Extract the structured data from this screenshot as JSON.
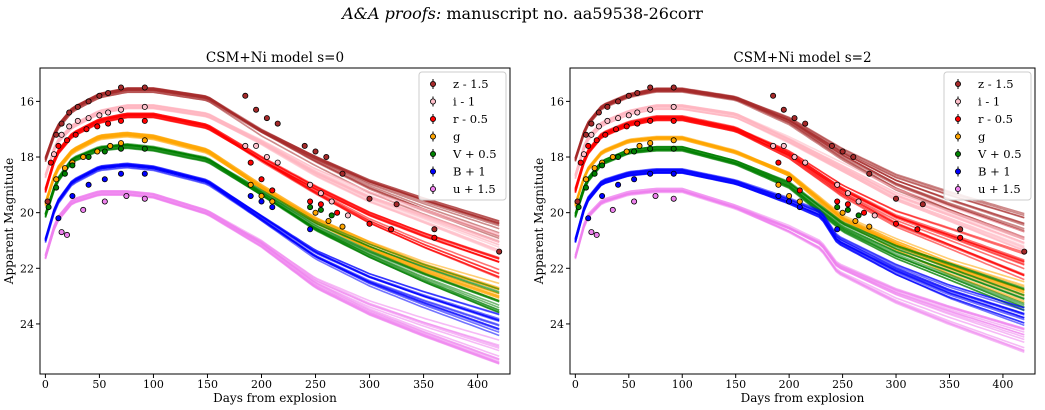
{
  "header": {
    "journal": "A&A proofs:",
    "manuscript": "manuscript no. aa59538-26corr"
  },
  "chart_data": [
    {
      "type": "line",
      "title": "CSM+Ni model s=0",
      "xlabel": "Days from explosion",
      "ylabel": "Apparent Magnitude",
      "xlim": [
        -5,
        430
      ],
      "ylim": [
        25.8,
        14.8
      ],
      "y_inverted": true,
      "xticks": [
        0,
        50,
        100,
        150,
        200,
        250,
        300,
        350,
        400
      ],
      "yticks": [
        16,
        18,
        20,
        22,
        24
      ],
      "grid": false,
      "legend_position": "top-right",
      "series": [
        {
          "name": "z - 1.5",
          "color": "#a52a2a",
          "line_color": "#a52a2a",
          "model": {
            "x": [
              0,
              10,
              25,
              50,
              75,
              100,
              150,
              200,
              250,
              300,
              350,
              420
            ],
            "y": [
              18.1,
              17.0,
              16.3,
              15.8,
              15.6,
              15.6,
              15.9,
              17.1,
              18.1,
              19.0,
              19.7,
              20.6
            ]
          },
          "points": {
            "x": [
              2,
              10,
              15,
              22,
              30,
              40,
              50,
              58,
              70,
              92,
              185,
              195,
              205,
              215,
              240,
              250,
              260,
              275,
              300,
              325,
              360,
              420
            ],
            "y": [
              19.6,
              17.2,
              16.8,
              16.4,
              16.2,
              16.0,
              15.8,
              15.7,
              15.5,
              15.5,
              15.8,
              16.3,
              16.6,
              16.8,
              17.6,
              17.8,
              18.0,
              18.6,
              19.5,
              19.7,
              20.6,
              21.4
            ]
          }
        },
        {
          "name": "i - 1",
          "color": "#ffc0cb",
          "line_color": "#ffb6c1",
          "model": {
            "x": [
              0,
              10,
              25,
              50,
              75,
              100,
              150,
              200,
              250,
              300,
              350,
              420
            ],
            "y": [
              18.7,
              17.5,
              16.9,
              16.4,
              16.2,
              16.2,
              16.5,
              17.5,
              18.6,
              19.5,
              20.2,
              21.2
            ]
          },
          "points": {
            "x": [
              8,
              15,
              22,
              30,
              40,
              50,
              58,
              70,
              92,
              185,
              195,
              205,
              215,
              245,
              255,
              265,
              280
            ],
            "y": [
              17.9,
              17.2,
              16.9,
              16.7,
              16.6,
              16.5,
              16.4,
              16.3,
              16.2,
              17.6,
              17.6,
              18.0,
              18.2,
              19.0,
              19.3,
              19.6,
              20.1
            ]
          }
        },
        {
          "name": "r - 0.5",
          "color": "#ff0000",
          "line_color": "#ff0000",
          "model": {
            "x": [
              0,
              10,
              25,
              50,
              75,
              100,
              150,
              200,
              250,
              300,
              350,
              420
            ],
            "y": [
              19.2,
              17.9,
              17.2,
              16.7,
              16.5,
              16.5,
              16.9,
              18.1,
              19.2,
              20.2,
              21.0,
              22.0
            ]
          },
          "points": {
            "x": [
              5,
              12,
              20,
              28,
              38,
              48,
              58,
              70,
              92,
              190,
              200,
              210,
              245,
              255,
              270,
              300,
              320,
              360
            ],
            "y": [
              18.2,
              17.6,
              17.4,
              17.2,
              17.0,
              16.9,
              16.8,
              16.7,
              16.7,
              18.2,
              18.8,
              19.2,
              19.6,
              19.7,
              20.0,
              20.4,
              20.6,
              20.9
            ]
          }
        },
        {
          "name": "g",
          "color": "#ffa500",
          "line_color": "#ffa500",
          "model": {
            "x": [
              0,
              10,
              25,
              50,
              75,
              100,
              150,
              200,
              250,
              300,
              350,
              420
            ],
            "y": [
              19.7,
              18.5,
              17.8,
              17.3,
              17.2,
              17.3,
              17.8,
              19.1,
              20.3,
              21.2,
              22.0,
              22.9
            ]
          },
          "points": {
            "x": [
              10,
              18,
              25,
              35,
              48,
              60,
              70,
              92,
              190,
              200,
              210,
              250,
              262,
              275
            ],
            "y": [
              18.8,
              18.4,
              18.2,
              18.0,
              17.8,
              17.6,
              17.5,
              17.4,
              19.0,
              19.4,
              19.6,
              20.0,
              20.3,
              20.5
            ]
          }
        },
        {
          "name": "V + 0.5",
          "color": "#008000",
          "line_color": "#008000",
          "model": {
            "x": [
              0,
              10,
              25,
              50,
              75,
              100,
              150,
              200,
              250,
              300,
              350,
              420
            ],
            "y": [
              20.1,
              18.9,
              18.1,
              17.7,
              17.6,
              17.7,
              18.1,
              19.3,
              20.5,
              21.4,
              22.2,
              23.2
            ]
          },
          "points": {
            "x": [
              3,
              10,
              18,
              25,
              40,
              55,
              70,
              92,
              245,
              255,
              265
            ],
            "y": [
              19.8,
              19.1,
              18.6,
              18.3,
              18.0,
              17.8,
              17.7,
              17.7,
              19.8,
              19.9,
              20.1
            ]
          }
        },
        {
          "name": "B + 1",
          "color": "#0000ff",
          "line_color": "#0000ff",
          "model": {
            "x": [
              0,
              10,
              25,
              50,
              75,
              100,
              150,
              200,
              250,
              300,
              350,
              420
            ],
            "y": [
              21.0,
              19.7,
              18.9,
              18.4,
              18.3,
              18.4,
              18.9,
              20.2,
              21.5,
              22.4,
              23.1,
              24.0
            ]
          },
          "points": {
            "x": [
              12,
              25,
              40,
              55,
              70,
              92,
              190,
              200,
              210,
              245
            ],
            "y": [
              20.2,
              19.4,
              19.0,
              18.8,
              18.6,
              18.6,
              19.4,
              19.6,
              19.8,
              20.6
            ]
          }
        },
        {
          "name": "u + 1.5",
          "color": "#ee82ee",
          "line_color": "#ee82ee",
          "model": {
            "x": [
              0,
              10,
              25,
              50,
              75,
              100,
              150,
              200,
              250,
              300,
              350,
              420
            ],
            "y": [
              21.6,
              20.3,
              19.6,
              19.3,
              19.3,
              19.4,
              20.0,
              21.1,
              22.5,
              23.4,
              24.1,
              25.0
            ]
          },
          "points": {
            "x": [
              15,
              20,
              35,
              55,
              75,
              92
            ],
            "y": [
              20.7,
              20.8,
              19.9,
              19.6,
              19.4,
              19.5
            ]
          }
        }
      ]
    },
    {
      "type": "line",
      "title": "CSM+Ni model s=2",
      "xlabel": "Days from explosion",
      "ylabel": "Apparent Magnitude",
      "xlim": [
        -5,
        430
      ],
      "ylim": [
        25.8,
        14.8
      ],
      "y_inverted": true,
      "xticks": [
        0,
        50,
        100,
        150,
        200,
        250,
        300,
        350,
        400
      ],
      "yticks": [
        16,
        18,
        20,
        22,
        24
      ],
      "grid": false,
      "legend_position": "top-right",
      "series": [
        {
          "name": "z - 1.5",
          "color": "#a52a2a",
          "line_color": "#a52a2a",
          "model": {
            "x": [
              0,
              10,
              25,
              50,
              75,
              100,
              150,
              200,
              250,
              300,
              350,
              420
            ],
            "y": [
              18.1,
              16.9,
              16.2,
              15.8,
              15.6,
              15.6,
              15.9,
              16.7,
              17.9,
              18.9,
              19.6,
              20.5
            ]
          },
          "points": {
            "x": [
              2,
              10,
              15,
              22,
              30,
              40,
              50,
              58,
              70,
              92,
              185,
              195,
              205,
              215,
              240,
              250,
              260,
              275,
              300,
              325,
              360,
              420
            ],
            "y": [
              19.6,
              17.2,
              16.8,
              16.4,
              16.2,
              16.0,
              15.8,
              15.7,
              15.5,
              15.5,
              15.8,
              16.3,
              16.6,
              16.8,
              17.6,
              17.8,
              18.0,
              18.6,
              19.5,
              19.7,
              20.6,
              21.4
            ]
          }
        },
        {
          "name": "i - 1",
          "color": "#ffc0cb",
          "line_color": "#ffb6c1",
          "model": {
            "x": [
              0,
              10,
              25,
              50,
              75,
              100,
              150,
              200,
              250,
              300,
              350,
              420
            ],
            "y": [
              18.7,
              17.4,
              16.8,
              16.4,
              16.2,
              16.2,
              16.5,
              17.4,
              18.4,
              19.4,
              20.1,
              21.1
            ]
          },
          "points": {
            "x": [
              8,
              15,
              22,
              30,
              40,
              50,
              58,
              70,
              92,
              185,
              195,
              205,
              215,
              245,
              255,
              265,
              280
            ],
            "y": [
              17.9,
              17.2,
              16.9,
              16.7,
              16.6,
              16.5,
              16.4,
              16.3,
              16.2,
              17.6,
              17.6,
              18.0,
              18.2,
              19.0,
              19.3,
              19.6,
              20.1
            ]
          }
        },
        {
          "name": "r - 0.5",
          "color": "#ff0000",
          "line_color": "#ff0000",
          "model": {
            "x": [
              0,
              10,
              25,
              50,
              75,
              100,
              150,
              200,
              250,
              300,
              350,
              420
            ],
            "y": [
              19.2,
              17.9,
              17.2,
              16.8,
              16.6,
              16.6,
              17.0,
              17.9,
              19.2,
              20.2,
              20.9,
              21.9
            ]
          },
          "points": {
            "x": [
              5,
              12,
              20,
              28,
              38,
              48,
              58,
              70,
              92,
              190,
              200,
              210,
              245,
              255,
              270,
              300,
              320,
              360
            ],
            "y": [
              18.2,
              17.6,
              17.4,
              17.2,
              17.0,
              16.9,
              16.8,
              16.7,
              16.7,
              18.2,
              18.8,
              19.2,
              19.6,
              19.7,
              20.0,
              20.4,
              20.6,
              20.9
            ]
          }
        },
        {
          "name": "g",
          "color": "#ffa500",
          "line_color": "#ffa500",
          "model": {
            "x": [
              0,
              10,
              25,
              50,
              75,
              100,
              150,
              200,
              250,
              300,
              350,
              420
            ],
            "y": [
              19.7,
              18.5,
              17.8,
              17.4,
              17.3,
              17.3,
              17.8,
              18.6,
              20.2,
              21.1,
              21.9,
              22.8
            ]
          },
          "points": {
            "x": [
              10,
              18,
              25,
              35,
              48,
              60,
              70,
              92,
              190,
              200,
              210,
              250,
              262,
              275
            ],
            "y": [
              18.8,
              18.4,
              18.2,
              18.0,
              17.8,
              17.6,
              17.5,
              17.4,
              19.0,
              19.4,
              19.6,
              20.0,
              20.3,
              20.5
            ]
          }
        },
        {
          "name": "V + 0.5",
          "color": "#008000",
          "line_color": "#008000",
          "model": {
            "x": [
              0,
              10,
              25,
              50,
              75,
              100,
              150,
              200,
              250,
              300,
              350,
              420
            ],
            "y": [
              20.1,
              18.9,
              18.2,
              17.8,
              17.7,
              17.7,
              18.2,
              19.0,
              20.5,
              21.4,
              22.1,
              23.1
            ]
          },
          "points": {
            "x": [
              3,
              10,
              18,
              25,
              40,
              55,
              70,
              92,
              245,
              255,
              265
            ],
            "y": [
              19.8,
              19.1,
              18.6,
              18.3,
              18.0,
              17.8,
              17.7,
              17.7,
              19.8,
              19.9,
              20.1
            ]
          }
        },
        {
          "name": "B + 1",
          "color": "#0000ff",
          "line_color": "#0000ff",
          "model": {
            "x": [
              0,
              10,
              25,
              50,
              75,
              100,
              150,
              200,
              230,
              245,
              300,
              350,
              420
            ],
            "y": [
              21.0,
              19.6,
              18.9,
              18.6,
              18.5,
              18.5,
              18.9,
              19.6,
              20.1,
              21.0,
              22.1,
              22.9,
              23.8
            ]
          },
          "points": {
            "x": [
              12,
              25,
              40,
              55,
              70,
              92,
              190,
              200,
              210,
              245
            ],
            "y": [
              20.2,
              19.4,
              19.0,
              18.8,
              18.6,
              18.6,
              19.4,
              19.6,
              19.8,
              20.6
            ]
          }
        },
        {
          "name": "u + 1.5",
          "color": "#ee82ee",
          "line_color": "#ee82ee",
          "model": {
            "x": [
              0,
              10,
              25,
              50,
              75,
              100,
              150,
              200,
              230,
              245,
              300,
              350,
              420
            ],
            "y": [
              21.6,
              20.2,
              19.6,
              19.3,
              19.2,
              19.2,
              19.8,
              20.6,
              21.2,
              22.0,
              23.0,
              23.7,
              24.6
            ]
          },
          "points": {
            "x": [
              15,
              20,
              35,
              55,
              75,
              92
            ],
            "y": [
              20.7,
              20.8,
              19.9,
              19.6,
              19.4,
              19.5
            ]
          }
        }
      ]
    }
  ]
}
